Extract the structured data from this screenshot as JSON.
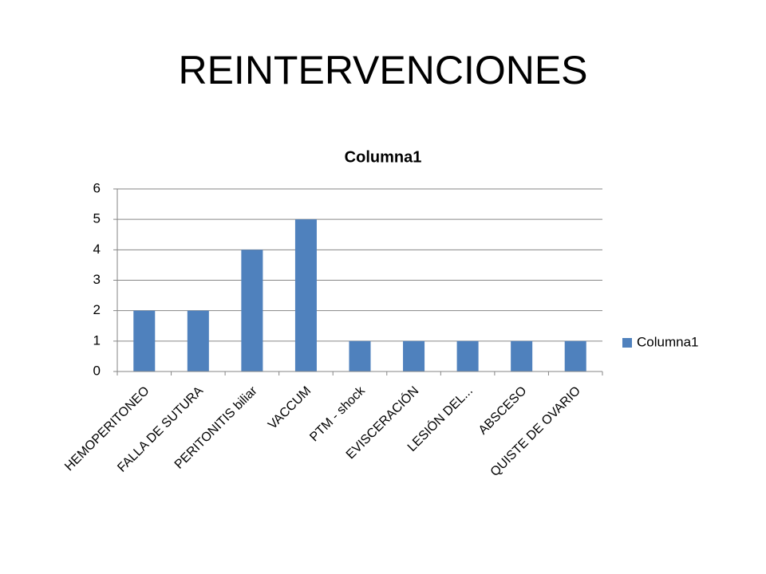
{
  "slide_title": "REINTERVENCIONES",
  "chart_data": {
    "type": "bar",
    "title": "Columna1",
    "categories": [
      "HEMOPERITONEO",
      "FALLA DE SUTURA",
      "PERITONITIS biliar",
      "VACCUM",
      "PTM - shock",
      "EVISCERACIÓN",
      "LESIÓN DEL...",
      "ABSCESO",
      "QUISTE DE OVARIO"
    ],
    "series": [
      {
        "name": "Columna1",
        "color": "#4f81bd",
        "values": [
          2,
          2,
          4,
          5,
          1,
          1,
          1,
          1,
          1
        ]
      }
    ],
    "ylim": [
      0,
      6
    ],
    "yticks": [
      0,
      1,
      2,
      3,
      4,
      5,
      6
    ],
    "grid": true,
    "legend": "right"
  }
}
